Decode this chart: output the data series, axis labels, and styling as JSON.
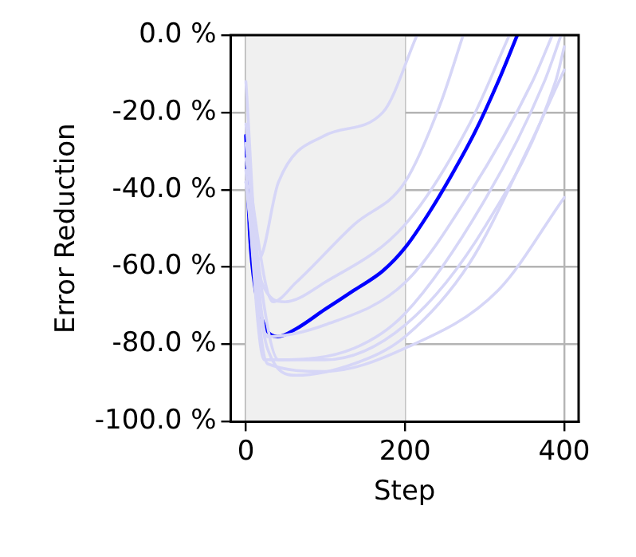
{
  "chart_data": {
    "type": "line",
    "xlabel": "Step",
    "ylabel": "Error Reduction",
    "xlim": [
      -19,
      418
    ],
    "ylim": [
      -100,
      0
    ],
    "xticks": [
      0,
      200,
      400
    ],
    "yticks": [
      {
        "value": -100,
        "label": "-100.0 %"
      },
      {
        "value": -80,
        "label": "-80.0 %"
      },
      {
        "value": -60,
        "label": "-60.0 %"
      },
      {
        "value": -40,
        "label": "-40.0 %"
      },
      {
        "value": -20,
        "label": "-20.0 %"
      },
      {
        "value": 0,
        "label": "0.0 %"
      }
    ],
    "grid": true,
    "legend": false,
    "marker": "none",
    "line_style": "solid",
    "bands": [
      {
        "axis": "x",
        "from": 0,
        "to": 200,
        "color": "#f0f0f0"
      }
    ],
    "series": [
      {
        "color": "#d6d6f7",
        "x": [
          0,
          16,
          41,
          99,
          172,
          215
        ],
        "values": [
          -12,
          -58,
          -38,
          -26,
          -20,
          0
        ]
      },
      {
        "color": "#d6d6f7",
        "x": [
          0,
          20,
          49,
          99,
          200,
          281,
          331
        ],
        "values": [
          -23,
          -64,
          -69,
          -64,
          -49,
          -23,
          0
        ]
      },
      {
        "color": "#d6d6f7",
        "x": [
          0,
          27,
          63,
          136,
          200,
          281,
          353,
          400
        ],
        "values": [
          -38,
          -81,
          -88,
          -85,
          -78,
          -59,
          -30,
          -9
        ]
      },
      {
        "color": "#d6d6f7",
        "x": [
          0,
          23,
          99,
          200,
          302,
          389,
          400
        ],
        "values": [
          -35,
          -84,
          -84,
          -75,
          -49,
          -12,
          -3
        ]
      },
      {
        "color": "#d6d6f7",
        "x": [
          0,
          34,
          63,
          136,
          200,
          244,
          273
        ],
        "values": [
          -32,
          -69,
          -64,
          -49,
          -38,
          -18,
          0
        ]
      },
      {
        "color": "#d6d6f7",
        "x": [
          0,
          27,
          99,
          200,
          317,
          400
        ],
        "values": [
          -38,
          -85,
          -87,
          -81,
          -66,
          -42
        ]
      },
      {
        "color": "#d6d6f7",
        "x": [
          0,
          27,
          99,
          200,
          281,
          360,
          385
        ],
        "values": [
          -28,
          -78,
          -75,
          -64,
          -41,
          -12,
          0
        ]
      },
      {
        "color": "#d6d6f7",
        "x": [
          0,
          41,
          136,
          200,
          302,
          375,
          396
        ],
        "values": [
          -38,
          -84,
          -81,
          -72,
          -42,
          -12,
          0
        ]
      },
      {
        "color": "#0000ff",
        "x": [
          0,
          5,
          12,
          23,
          40,
          63,
          99,
          136,
          172,
          200,
          230,
          259,
          288,
          317,
          341
        ],
        "values": [
          -26,
          -52,
          -66,
          -75,
          -78,
          -76,
          -71,
          -66,
          -61,
          -55,
          -46,
          -36,
          -25,
          -12,
          0
        ]
      }
    ]
  }
}
